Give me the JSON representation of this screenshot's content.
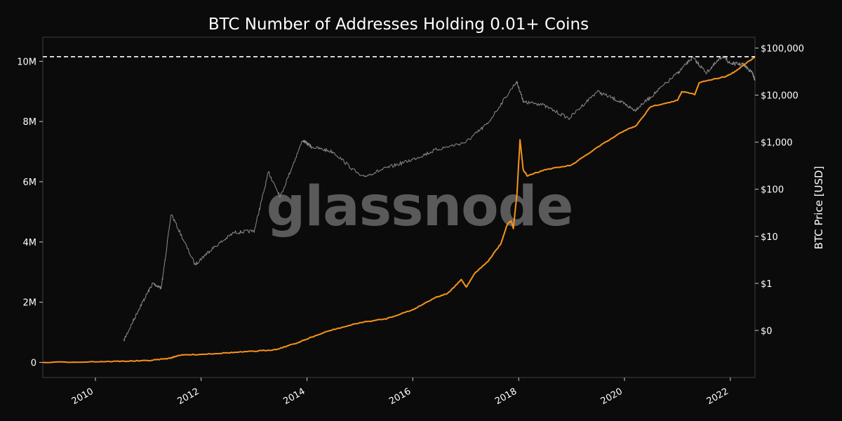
{
  "chart_data": {
    "type": "line",
    "title": "BTC Number of Addresses Holding 0.01+ Coins",
    "watermark": "glassnode",
    "x_ticks": [
      "2010",
      "2012",
      "2014",
      "2016",
      "2018",
      "2020",
      "2022"
    ],
    "x_range": [
      "2009-01-03",
      "2022-06-20"
    ],
    "y_left": {
      "ticks": [
        "0",
        "2M",
        "4M",
        "6M",
        "8M",
        "10M"
      ],
      "tick_values": [
        0,
        2000000,
        4000000,
        6000000,
        8000000,
        10000000
      ],
      "range": [
        -500000,
        10800000
      ]
    },
    "y_right": {
      "label": "BTC Price [USD]",
      "scale": "log",
      "ticks": [
        "$0",
        "$1",
        "$10",
        "$100",
        "$1,000",
        "$10,000",
        "$100,000"
      ],
      "tick_values": [
        0.1,
        1,
        10,
        100,
        1000,
        10000,
        100000
      ],
      "range": [
        0.01,
        170000
      ]
    },
    "ath_line": {
      "value": 10153000,
      "style": "dashed",
      "color": "#ffffff"
    },
    "grid": false,
    "series": [
      {
        "key": "addresses",
        "axis": "left",
        "color": "#f7931a",
        "points": [
          [
            "2009-01-03",
            0
          ],
          [
            "2010-01-01",
            25000
          ],
          [
            "2010-07-01",
            40000
          ],
          [
            "2011-01-01",
            60000
          ],
          [
            "2011-06-01",
            140000
          ],
          [
            "2011-08-01",
            240000
          ],
          [
            "2012-01-01",
            270000
          ],
          [
            "2012-07-01",
            320000
          ],
          [
            "2013-01-01",
            370000
          ],
          [
            "2013-06-01",
            430000
          ],
          [
            "2013-11-01",
            660000
          ],
          [
            "2013-12-15",
            750000
          ],
          [
            "2014-06-01",
            1050000
          ],
          [
            "2015-01-01",
            1320000
          ],
          [
            "2015-07-01",
            1450000
          ],
          [
            "2016-01-01",
            1750000
          ],
          [
            "2016-06-01",
            2150000
          ],
          [
            "2016-09-01",
            2300000
          ],
          [
            "2016-12-01",
            2750000
          ],
          [
            "2017-01-05",
            2500000
          ],
          [
            "2017-03-01",
            2950000
          ],
          [
            "2017-06-01",
            3350000
          ],
          [
            "2017-09-01",
            3950000
          ],
          [
            "2017-10-15",
            4600000
          ],
          [
            "2017-11-10",
            4700000
          ],
          [
            "2017-11-25",
            4450000
          ],
          [
            "2017-12-20",
            5600000
          ],
          [
            "2018-01-10",
            7400000
          ],
          [
            "2018-02-01",
            6400000
          ],
          [
            "2018-03-01",
            6200000
          ],
          [
            "2018-07-01",
            6400000
          ],
          [
            "2019-01-01",
            6550000
          ],
          [
            "2019-07-01",
            7150000
          ],
          [
            "2020-01-01",
            7700000
          ],
          [
            "2020-03-20",
            7850000
          ],
          [
            "2020-07-01",
            8500000
          ],
          [
            "2021-01-01",
            8700000
          ],
          [
            "2021-02-01",
            9000000
          ],
          [
            "2021-05-01",
            8900000
          ],
          [
            "2021-06-01",
            9300000
          ],
          [
            "2021-12-01",
            9500000
          ],
          [
            "2022-02-01",
            9650000
          ],
          [
            "2022-06-20",
            10153000
          ]
        ]
      },
      {
        "key": "price",
        "axis": "right",
        "color": "#8c8c8c",
        "points": [
          [
            "2010-07-15",
            0.06
          ],
          [
            "2010-11-01",
            0.3
          ],
          [
            "2011-02-01",
            1
          ],
          [
            "2011-04-01",
            0.8
          ],
          [
            "2011-06-08",
            30
          ],
          [
            "2011-11-20",
            2.5
          ],
          [
            "2012-03-01",
            5
          ],
          [
            "2012-08-15",
            12
          ],
          [
            "2013-01-01",
            13
          ],
          [
            "2013-04-10",
            230
          ],
          [
            "2013-07-01",
            70
          ],
          [
            "2013-12-01",
            1100
          ],
          [
            "2014-02-01",
            800
          ],
          [
            "2014-07-01",
            620
          ],
          [
            "2015-01-14",
            180
          ],
          [
            "2015-07-01",
            280
          ],
          [
            "2016-01-01",
            430
          ],
          [
            "2016-06-15",
            700
          ],
          [
            "2017-01-01",
            1000
          ],
          [
            "2017-06-01",
            2500
          ],
          [
            "2017-12-17",
            19500
          ],
          [
            "2018-02-06",
            7000
          ],
          [
            "2018-06-01",
            6500
          ],
          [
            "2018-12-15",
            3200
          ],
          [
            "2019-06-26",
            12000
          ],
          [
            "2019-12-01",
            7300
          ],
          [
            "2020-03-13",
            4800
          ],
          [
            "2020-07-01",
            9200
          ],
          [
            "2020-12-31",
            29000
          ],
          [
            "2021-04-14",
            63000
          ],
          [
            "2021-07-20",
            30000
          ],
          [
            "2021-11-10",
            68000
          ],
          [
            "2022-01-01",
            47000
          ],
          [
            "2022-04-01",
            45000
          ],
          [
            "2022-06-01",
            30000
          ],
          [
            "2022-06-20",
            20500
          ]
        ]
      }
    ]
  }
}
